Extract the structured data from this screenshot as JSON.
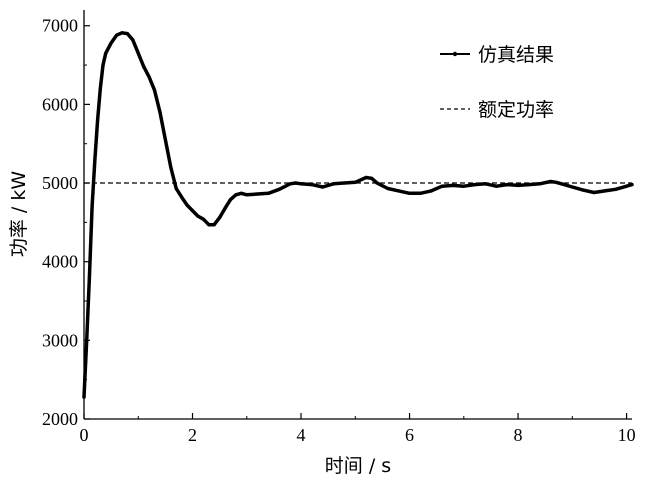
{
  "chart_data": {
    "type": "line",
    "xlabel": "时间 / s",
    "ylabel": "功率 / kW",
    "xlim": [
      0,
      10.1
    ],
    "ylim": [
      2000,
      7200
    ],
    "x_ticks": [
      0,
      2,
      4,
      6,
      8,
      10
    ],
    "y_ticks": [
      2000,
      3000,
      4000,
      5000,
      6000,
      7000
    ],
    "grid": false,
    "legend_position": "top-right",
    "series": [
      {
        "name": "仿真结果",
        "style": "solid-with-dots",
        "color": "#000000",
        "x": [
          0,
          0.05,
          0.1,
          0.15,
          0.2,
          0.25,
          0.3,
          0.35,
          0.4,
          0.5,
          0.6,
          0.7,
          0.8,
          0.9,
          1.0,
          1.1,
          1.2,
          1.3,
          1.4,
          1.5,
          1.6,
          1.7,
          1.8,
          1.9,
          2.0,
          2.1,
          2.2,
          2.3,
          2.4,
          2.5,
          2.6,
          2.7,
          2.8,
          2.9,
          3.0,
          3.2,
          3.4,
          3.6,
          3.8,
          3.9,
          4.0,
          4.2,
          4.4,
          4.6,
          4.8,
          5.0,
          5.2,
          5.3,
          5.4,
          5.6,
          5.8,
          6.0,
          6.2,
          6.4,
          6.6,
          6.8,
          7.0,
          7.2,
          7.4,
          7.6,
          7.8,
          8.0,
          8.2,
          8.4,
          8.6,
          8.7,
          8.8,
          9.0,
          9.2,
          9.4,
          9.6,
          9.8,
          10.0,
          10.1
        ],
        "y": [
          2280,
          3000,
          3800,
          4700,
          5300,
          5800,
          6200,
          6500,
          6650,
          6780,
          6880,
          6910,
          6900,
          6820,
          6650,
          6480,
          6350,
          6180,
          5900,
          5550,
          5200,
          4930,
          4820,
          4720,
          4650,
          4580,
          4540,
          4470,
          4470,
          4560,
          4680,
          4790,
          4850,
          4870,
          4850,
          4860,
          4870,
          4920,
          4990,
          5000,
          4990,
          4980,
          4950,
          4990,
          5000,
          5010,
          5070,
          5060,
          5000,
          4930,
          4900,
          4870,
          4870,
          4900,
          4960,
          4970,
          4960,
          4980,
          4990,
          4960,
          4980,
          4970,
          4980,
          4990,
          5020,
          5010,
          4990,
          4950,
          4910,
          4880,
          4900,
          4920,
          4960,
          4980
        ]
      },
      {
        "name": "额定功率",
        "style": "dashed",
        "color": "#000000",
        "x": [
          0,
          10.1
        ],
        "y": [
          5000,
          5000
        ]
      }
    ]
  }
}
